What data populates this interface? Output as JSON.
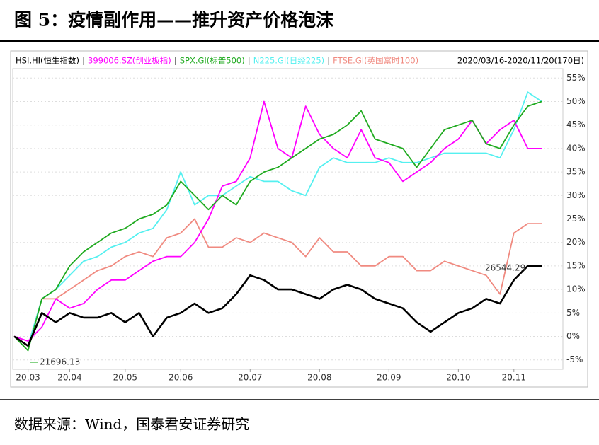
{
  "title": "图 5：疫情副作用——推升资产价格泡沫",
  "source": "数据来源：Wind，国泰君安证券研究",
  "chart_data": {
    "type": "line",
    "period": "2020/03/16-2020/11/20(170日)",
    "categories": [
      null,
      "20.03",
      null,
      null,
      "20.04",
      null,
      null,
      null,
      "20.05",
      null,
      null,
      null,
      "20.06",
      null,
      null,
      null,
      null,
      "20.07",
      null,
      null,
      null,
      null,
      "20.08",
      null,
      null,
      null,
      null,
      "20.09",
      null,
      null,
      null,
      null,
      "20.10",
      null,
      null,
      null,
      "20.11",
      null,
      null
    ],
    "ylim": [
      -7,
      57
    ],
    "yticks": [
      {
        "value": -5,
        "label": "-5%"
      },
      {
        "value": 0,
        "label": "0%"
      },
      {
        "value": 5,
        "label": "5%"
      },
      {
        "value": 10,
        "label": "10%"
      },
      {
        "value": 15,
        "label": "15%"
      },
      {
        "value": 20,
        "label": "20%"
      },
      {
        "value": 25,
        "label": "25%"
      },
      {
        "value": 30,
        "label": "30%"
      },
      {
        "value": 35,
        "label": "35%"
      },
      {
        "value": 40,
        "label": "40%"
      },
      {
        "value": 45,
        "label": "45%"
      },
      {
        "value": 50,
        "label": "50%"
      },
      {
        "value": 55,
        "label": "55%"
      }
    ],
    "grid": true,
    "series": [
      {
        "name": "HSI.HI(恒生指数)",
        "color": "#000000",
        "values": [
          0,
          -2,
          5,
          3,
          5,
          4,
          4,
          5,
          3,
          5,
          0,
          4,
          5,
          7,
          5,
          6,
          9,
          13,
          12,
          10,
          10,
          9,
          8,
          10,
          11,
          10,
          8,
          7,
          6,
          3,
          1,
          3,
          5,
          6,
          8,
          7,
          12,
          15,
          15
        ]
      },
      {
        "name": "399006.SZ(创业板指)",
        "color": "#ff00ff",
        "values": [
          0,
          -1,
          2,
          8,
          6,
          7,
          10,
          12,
          12,
          14,
          16,
          17,
          17,
          20,
          25,
          32,
          33,
          38,
          50,
          40,
          38,
          49,
          43,
          40,
          38,
          44,
          38,
          37,
          33,
          35,
          37,
          40,
          42,
          46,
          41,
          44,
          46,
          40,
          40
        ]
      },
      {
        "name": "SPX.GI(标普500)",
        "color": "#1faa1f",
        "values": [
          0,
          -3,
          8,
          10,
          15,
          18,
          20,
          22,
          23,
          25,
          26,
          28,
          33,
          30,
          27,
          30,
          28,
          33,
          35,
          36,
          38,
          40,
          42,
          43,
          45,
          48,
          42,
          41,
          40,
          36,
          40,
          44,
          45,
          46,
          41,
          40,
          45,
          49,
          50
        ]
      },
      {
        "name": "N225.GI(日经225)",
        "color": "#55f0f0",
        "values": [
          0,
          -2,
          8,
          10,
          13,
          16,
          17,
          19,
          20,
          22,
          23,
          27,
          35,
          28,
          30,
          30,
          32,
          34,
          33,
          33,
          31,
          30,
          36,
          38,
          37,
          37,
          37,
          38,
          37,
          37,
          38,
          39,
          39,
          39,
          39,
          38,
          44,
          52,
          50
        ]
      },
      {
        "name": "FTSE.GI(英国富时100)",
        "color": "#f08a80",
        "values": [
          0,
          -2,
          8,
          8,
          10,
          12,
          14,
          15,
          17,
          18,
          17,
          21,
          22,
          25,
          19,
          19,
          21,
          20,
          22,
          21,
          20,
          17,
          21,
          18,
          18,
          15,
          15,
          17,
          17,
          14,
          14,
          16,
          15,
          14,
          13,
          9,
          22,
          24,
          24
        ]
      }
    ],
    "annotations": [
      {
        "text": "26544.29",
        "color": "#d00000"
      },
      {
        "text": "21696.13",
        "color": "#1faa1f"
      }
    ]
  }
}
